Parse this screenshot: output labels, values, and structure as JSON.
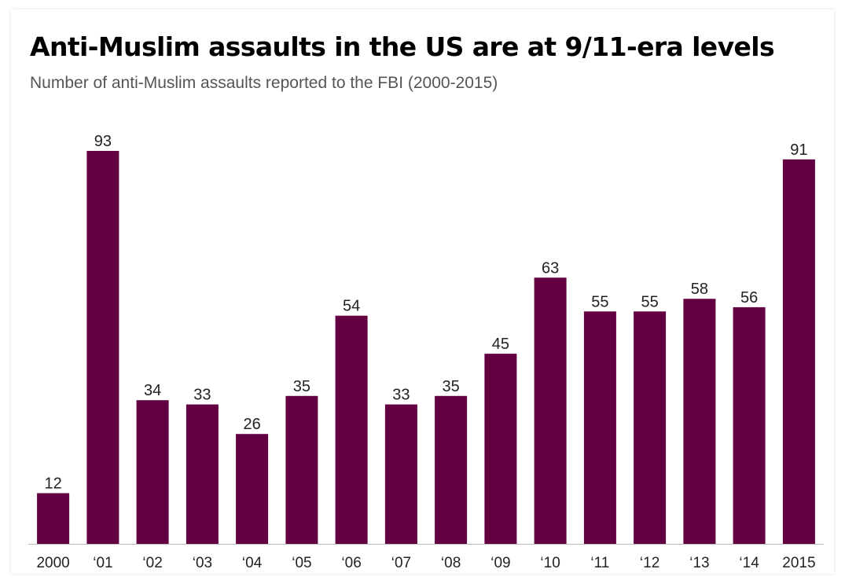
{
  "title": "Anti-Muslim assaults in the US are at 9/11-era levels",
  "subtitle": "Number of anti-Muslim assaults reported to the FBI (2000-2015)",
  "colors": {
    "bar": "#620042",
    "axis": "#bbbbbb",
    "text": "#222222"
  },
  "chart_data": {
    "type": "bar",
    "categories": [
      "2000",
      "‘01",
      "‘02",
      "‘03",
      "‘04",
      "‘05",
      "‘06",
      "‘07",
      "‘08",
      "‘09",
      "‘10",
      "‘11",
      "‘12",
      "‘13",
      "‘14",
      "2015"
    ],
    "values": [
      12,
      93,
      34,
      33,
      26,
      35,
      54,
      33,
      35,
      45,
      63,
      55,
      55,
      58,
      56,
      91
    ],
    "data_labels": [
      "12",
      "93",
      "34",
      "33",
      "26",
      "35",
      "54",
      "33",
      "35",
      "45",
      "63",
      "55",
      "55",
      "58",
      "56",
      "91"
    ],
    "title": "Anti-Muslim assaults in the US are at 9/11-era levels",
    "subtitle": "Number of anti-Muslim assaults reported to the FBI (2000-2015)",
    "xlabel": "",
    "ylabel": "",
    "ylim": [
      0,
      93
    ],
    "grid": false,
    "legend": "none"
  }
}
